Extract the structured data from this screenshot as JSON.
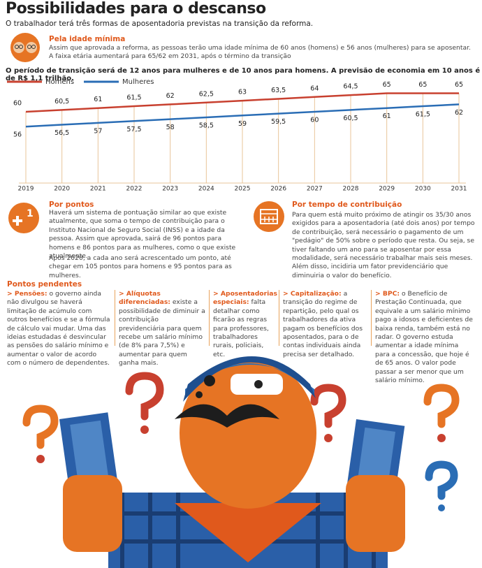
{
  "header": {
    "title": "Possibilidades para o descanso",
    "subtitle": "O trabalhador terá três formas de aposentadoria previstas na transição da reforma."
  },
  "idade": {
    "heading": "Pela idade mínima",
    "text": "Assim que aprovada a reforma, as pessoas terão uma idade mínima de 60 anos (homens) e 56 anos (mulheres) para se aposentar. A faixa etária aumentará para 65/62 em 2031, após o término da transição"
  },
  "chart_data": {
    "type": "line",
    "title": "O período de transição será de 12 anos para mulheres e de 10 anos para homens. A previsão de economia em 10 anos é de R$ 1,1 trilhão.",
    "categories": [
      "2019",
      "2020",
      "2021",
      "2022",
      "2023",
      "2024",
      "2025",
      "2026",
      "2027",
      "2028",
      "2029",
      "2030",
      "2031"
    ],
    "series": [
      {
        "name": "Homens",
        "color": "#c8402f",
        "values": [
          60,
          60.5,
          61,
          61.5,
          62,
          62.5,
          63,
          63.5,
          64,
          64.5,
          65,
          65,
          65
        ],
        "value_labels": [
          "60",
          "60,5",
          "61",
          "61,5",
          "62",
          "62,5",
          "63",
          "63,5",
          "64",
          "64,5",
          "65",
          "65",
          "65"
        ]
      },
      {
        "name": "Mulheres",
        "color": "#2a6db5",
        "values": [
          56,
          56.5,
          57,
          57.5,
          58,
          58.5,
          59,
          59.5,
          60,
          60.5,
          61,
          61.5,
          62
        ],
        "value_labels": [
          "56",
          "56,5",
          "57",
          "57,5",
          "58",
          "58,5",
          "59",
          "59,5",
          "60",
          "60,5",
          "61",
          "61,5",
          "62"
        ]
      }
    ],
    "ylim": [
      52,
      68
    ]
  },
  "pontos": {
    "heading": "Por pontos",
    "paragraphs": [
      "Haverá um sistema de pontuação similar ao que existe atualmente, que soma o tempo de contribuição para o Instituto Nacional de Seguro Social (INSS) e a idade da pessoa. Assim que aprovada, sairá de 96 pontos para homens e 86 pontos para as mulheres, como o que existe atualmente.",
      "Após 2020, a cada ano será acrescentado um ponto, até chegar em 105 pontos para homens e 95 pontos para as mulheres."
    ]
  },
  "tempo": {
    "heading": "Por tempo de contribuição",
    "text": "Para quem está muito próximo de atingir os 35/30 anos exigidos para a aposentadoria (até dois anos) por tempo de contribuição, será necessário o pagamento de um \"pedágio\" de 50% sobre o período que resta. Ou seja, se tiver faltando um ano para se aposentar por essa modalidade, será necessário trabalhar mais seis meses. Além disso, incidiria um fator previdenciário que diminuiria o valor do benefício."
  },
  "pendentes": {
    "heading": "Pontos pendentes",
    "items": [
      {
        "label": "> Pensões:",
        "text": "o governo ainda não divulgou se haverá limitação de acúmulo com outros benefícios e se a fórmula de cálculo vai mudar. Uma das ideias estudadas é desvincular as pensões do salário mínimo e aumentar o valor de acordo com o número de dependentes."
      },
      {
        "label": "> Alíquotas diferenciadas:",
        "text": "existe a possibilidade de diminuir a contribuição previdenciária para quem recebe um salário mínimo (de 8% para 7,5%) e aumentar para quem ganha mais."
      },
      {
        "label": "> Aposentadorias especiais:",
        "text": "falta detalhar como ficarão as regras para professores, trabalhadores rurais, policiais, etc."
      },
      {
        "label": "> Capitalização:",
        "text": "a transição do regime de repartição, pelo qual os trabalhadores da ativa pagam os benefícios dos aposentados, para o de contas individuais ainda precisa ser detalhado."
      },
      {
        "label": "> BPC:",
        "text": "o Benefício de Prestação Continuada, que equivale a um salário mínimo pago a idosos e deficientes de baixa renda, também está no radar. O governo estuda aumentar a idade mínima para a concessão, que hoje é de 65 anos. O valor pode passar a ser menor que um salário mínimo."
      }
    ]
  }
}
